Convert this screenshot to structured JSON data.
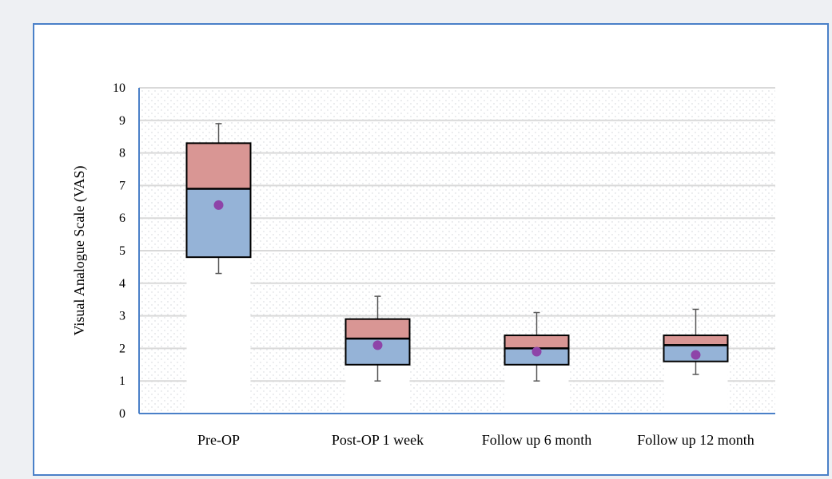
{
  "chart_data": {
    "type": "box",
    "ylabel": "Visual Analogue Scale (VAS)",
    "ylim": [
      0,
      10
    ],
    "yticks": [
      "0",
      "1",
      "2",
      "3",
      "4",
      "5",
      "6",
      "7",
      "8",
      "9",
      "10"
    ],
    "grid": true,
    "categories": [
      "Pre-OP",
      "Post-OP 1 week",
      "Follow up 6 month",
      "Follow up 12 month"
    ],
    "boxes": [
      {
        "min": 4.3,
        "q1": 4.8,
        "median": 6.9,
        "q3": 8.3,
        "max": 8.9,
        "mean": 6.4
      },
      {
        "min": 1.0,
        "q1": 1.5,
        "median": 2.3,
        "q3": 2.9,
        "max": 3.6,
        "mean": 2.1
      },
      {
        "min": 1.0,
        "q1": 1.5,
        "median": 2.0,
        "q3": 2.4,
        "max": 3.1,
        "mean": 1.9
      },
      {
        "min": 1.2,
        "q1": 1.6,
        "median": 2.1,
        "q3": 2.4,
        "max": 3.2,
        "mean": 1.8
      }
    ],
    "colors": {
      "upper_box": "#d99694",
      "lower_box": "#95b3d7",
      "mean_marker": "#8e44a8",
      "box_outline": "#000000",
      "whisker": "#595959",
      "gridline": "#d9d9d9",
      "axis": "#4a80c8"
    }
  }
}
